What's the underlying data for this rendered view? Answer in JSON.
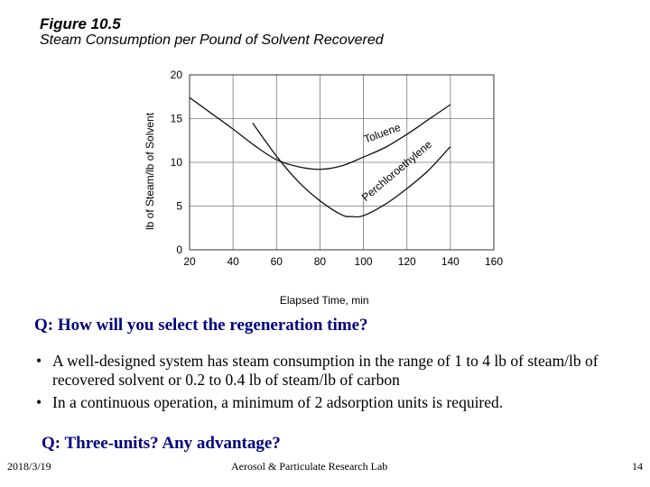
{
  "figure": {
    "label": "Figure 10.5",
    "title": "Steam Consumption per Pound of Solvent Recovered"
  },
  "chart_data": {
    "type": "line",
    "xlabel": "Elapsed Time, min",
    "ylabel": "lb of  Steam/lb of Solvent",
    "xlim": [
      20,
      160
    ],
    "ylim": [
      0,
      20
    ],
    "x_ticks": [
      "20",
      "40",
      "60",
      "80",
      "100",
      "120",
      "140",
      "160"
    ],
    "y_ticks": [
      "0",
      "5",
      "10",
      "15",
      "20"
    ],
    "grid": true,
    "series": [
      {
        "name": "Toluene",
        "x": [
          20,
          30,
          40,
          50,
          60,
          70,
          80,
          90,
          100,
          110,
          120,
          130,
          140
        ],
        "y": [
          17.4,
          15.6,
          13.8,
          11.9,
          10.3,
          9.5,
          9.2,
          9.6,
          10.6,
          11.7,
          13.2,
          14.9,
          16.6
        ],
        "label_pos": {
          "x": 101,
          "y": 12.2
        }
      },
      {
        "name": "Perchloroethylene",
        "x": [
          49,
          60,
          70,
          80,
          90,
          95,
          100,
          110,
          120,
          130,
          140
        ],
        "y": [
          14.5,
          10.7,
          7.8,
          5.6,
          4.0,
          3.8,
          3.9,
          5.2,
          7.0,
          9.1,
          11.8
        ],
        "label_pos": {
          "x": 101,
          "y": 5.5
        }
      }
    ]
  },
  "questions": {
    "q1": "Q: How will you select the regeneration time?",
    "q2": "Q: Three-units? Any advantage?"
  },
  "bullets": {
    "marker": "•",
    "items": [
      "A well-designed system has steam consumption in the range of 1 to 4 lb of steam/lb of recovered solvent or 0.2 to 0.4 lb of steam/lb of carbon",
      "In a continuous operation, a minimum of 2 adsorption units is required."
    ]
  },
  "footer": {
    "date": "2018/3/19",
    "lab": "Aerosol & Particulate Research Lab",
    "page": "14"
  }
}
